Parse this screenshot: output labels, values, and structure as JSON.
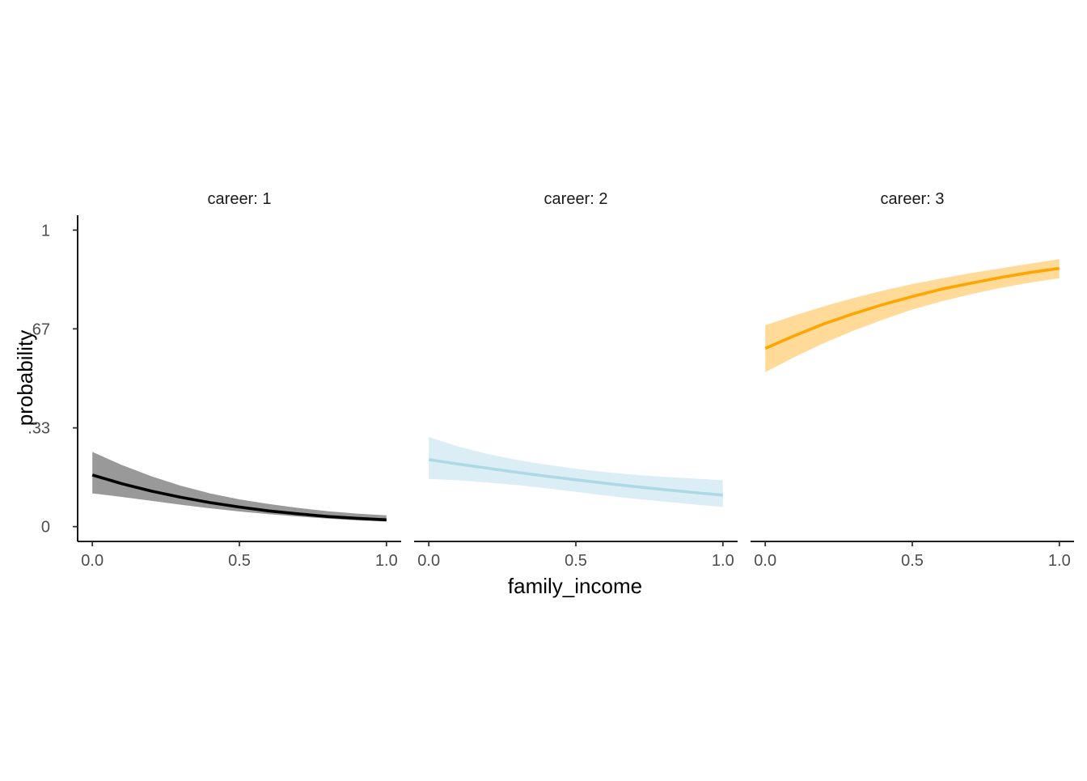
{
  "chart_data": {
    "type": "line",
    "xlabel": "family_income",
    "ylabel": "probability",
    "xlim": [
      -0.05,
      1.05
    ],
    "ylim": [
      -0.05,
      1.05
    ],
    "x_ticks": [
      {
        "value": 0.0,
        "label": "0.0"
      },
      {
        "value": 0.5,
        "label": "0.5"
      },
      {
        "value": 1.0,
        "label": "1.0"
      }
    ],
    "y_ticks": [
      {
        "value": 0,
        "label": "0"
      },
      {
        "value": 0.333,
        "label": ".33"
      },
      {
        "value": 0.667,
        "label": ".67"
      },
      {
        "value": 1,
        "label": "1"
      }
    ],
    "grid": false,
    "legend": "none",
    "x": [
      0.0,
      0.1,
      0.2,
      0.3,
      0.4,
      0.5,
      0.6,
      0.7,
      0.8,
      0.9,
      1.0
    ],
    "panels": [
      {
        "strip": "career: 1",
        "line_color": "#000000",
        "band_color": "#999999",
        "values": [
          0.174,
          0.145,
          0.12,
          0.099,
          0.081,
          0.066,
          0.053,
          0.043,
          0.034,
          0.028,
          0.023
        ],
        "lower": [
          0.112,
          0.1,
          0.087,
          0.074,
          0.062,
          0.051,
          0.042,
          0.034,
          0.027,
          0.021,
          0.017
        ],
        "upper": [
          0.252,
          0.208,
          0.17,
          0.138,
          0.112,
          0.092,
          0.076,
          0.063,
          0.052,
          0.044,
          0.038
        ]
      },
      {
        "strip": "career: 2",
        "line_color": "#ADD8E6",
        "band_color": "#DCEEF5",
        "values": [
          0.226,
          0.211,
          0.197,
          0.183,
          0.17,
          0.158,
          0.146,
          0.135,
          0.125,
          0.115,
          0.106
        ],
        "lower": [
          0.161,
          0.156,
          0.149,
          0.14,
          0.129,
          0.117,
          0.105,
          0.094,
          0.084,
          0.075,
          0.066
        ],
        "upper": [
          0.302,
          0.27,
          0.245,
          0.225,
          0.209,
          0.195,
          0.184,
          0.175,
          0.168,
          0.162,
          0.156
        ]
      },
      {
        "strip": "career: 3",
        "line_color": "#FFA500",
        "band_color": "#FFDA99",
        "values": [
          0.601,
          0.644,
          0.684,
          0.718,
          0.749,
          0.776,
          0.801,
          0.821,
          0.84,
          0.857,
          0.871
        ],
        "lower": [
          0.521,
          0.572,
          0.619,
          0.661,
          0.698,
          0.732,
          0.76,
          0.784,
          0.805,
          0.823,
          0.838
        ],
        "upper": [
          0.679,
          0.712,
          0.743,
          0.771,
          0.796,
          0.818,
          0.837,
          0.855,
          0.871,
          0.887,
          0.902
        ]
      }
    ]
  }
}
